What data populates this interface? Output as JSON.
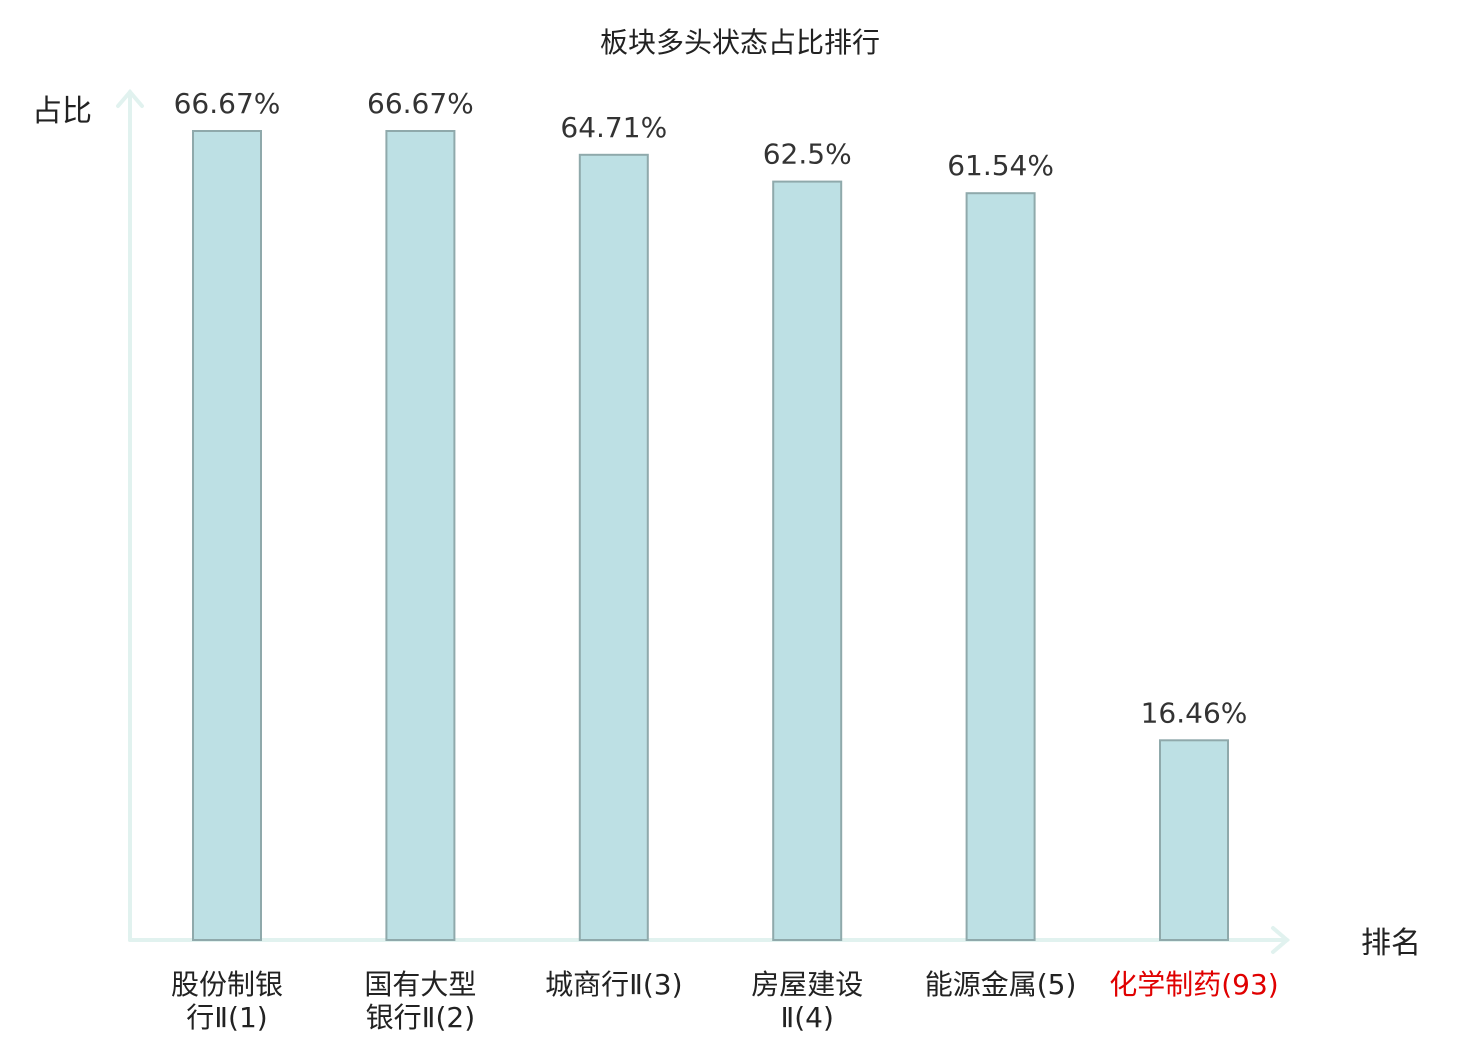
{
  "chart_data": {
    "type": "bar",
    "title": "板块多头状态占比排行",
    "xlabel": "排名",
    "ylabel": "占比",
    "categories": [
      [
        "股份制银",
        "行Ⅱ(1)"
      ],
      [
        "国有大型",
        "银行Ⅱ(2)"
      ],
      [
        "城商行Ⅱ(3)"
      ],
      [
        "房屋建设",
        "Ⅱ(4)"
      ],
      [
        "能源金属(5)"
      ],
      [
        "化学制药(93)"
      ]
    ],
    "values": [
      66.67,
      66.67,
      64.71,
      62.5,
      61.54,
      16.46
    ],
    "value_labels": [
      "66.67%",
      "66.67%",
      "64.71%",
      "62.5%",
      "61.54%",
      "16.46%"
    ],
    "highlight_index": 5,
    "ylim": [
      0,
      66.67
    ],
    "colors": {
      "bar_fill": "#bde0e4",
      "bar_stroke": "#8fa9ab",
      "axis": "#e1f2ef",
      "highlight_text": "#e00000",
      "text": "#222222"
    },
    "grid": false,
    "legend": "none"
  }
}
